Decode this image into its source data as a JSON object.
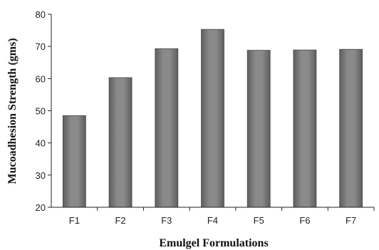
{
  "chart_data": {
    "type": "bar",
    "categories": [
      "F1",
      "F2",
      "F3",
      "F4",
      "F5",
      "F6",
      "F7"
    ],
    "values": [
      48.5,
      60.3,
      69.3,
      75.3,
      68.8,
      68.9,
      69.1
    ],
    "title": "",
    "xlabel": "Emulgel Formulations",
    "ylabel": "Mucoadhesion Strength (gms)",
    "ylim": [
      20,
      80
    ],
    "yticks": [
      20,
      30,
      40,
      50,
      60,
      70,
      80
    ],
    "grid": false,
    "legend": "none",
    "colors": {
      "bar": "#7d7d7d",
      "bar_dark": "#5a5a5a",
      "bar_light": "#a8a8a8",
      "axis": "#222222"
    }
  }
}
